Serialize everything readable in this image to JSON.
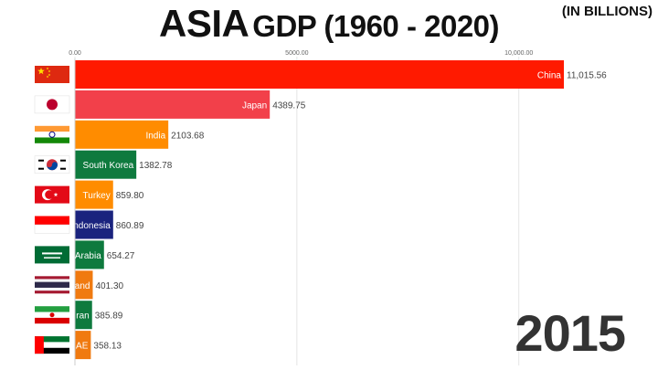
{
  "header": {
    "title_main": "ASIA",
    "title_sub": "GDP (1960 - 2020)",
    "unit_note": "(IN BILLIONS)"
  },
  "year": "2015",
  "colors": {
    "china": "#ff1a00",
    "japan": "#f2404a",
    "india": "#ff8c00",
    "south_korea": "#0e7a3e",
    "turkey": "#ff8c00",
    "indonesia": "#1a237e",
    "saudi_arabia": "#0e7a3e",
    "thailand": "#f07a10",
    "iran": "#0e7a3e",
    "uae": "#f07a10"
  },
  "chart_data": {
    "type": "bar",
    "orientation": "horizontal",
    "xlim": [
      0,
      11015.56
    ],
    "x_ticks": [
      "0.00",
      "5000.00",
      "10,000.00"
    ],
    "x_tick_values": [
      0,
      5000,
      10000
    ],
    "grid": true,
    "categories": [
      "China",
      "Japan",
      "India",
      "South Korea",
      "Turkey",
      "Indonesia",
      "Saudi Arabia",
      "Thailand",
      "Iran",
      "UAE"
    ],
    "values": [
      11015.56,
      4389.75,
      2103.68,
      1382.78,
      859.8,
      860.89,
      654.27,
      401.3,
      385.89,
      358.13
    ],
    "value_labels": [
      "11,015.56",
      "4389.75",
      "2103.68",
      "1382.78",
      "859.80",
      "860.89",
      "654.27",
      "401.30",
      "385.89",
      "358.13"
    ],
    "bar_colors": [
      "#ff1a00",
      "#f2404a",
      "#ff8c00",
      "#0e7a3e",
      "#ff8c00",
      "#1a237e",
      "#0e7a3e",
      "#f07a10",
      "#0e7a3e",
      "#f07a10"
    ],
    "flags": [
      "china-flag",
      "japan-flag",
      "india-flag",
      "south-korea-flag",
      "turkey-flag",
      "indonesia-flag",
      "saudi-arabia-flag",
      "thailand-flag",
      "iran-flag",
      "uae-flag"
    ]
  }
}
